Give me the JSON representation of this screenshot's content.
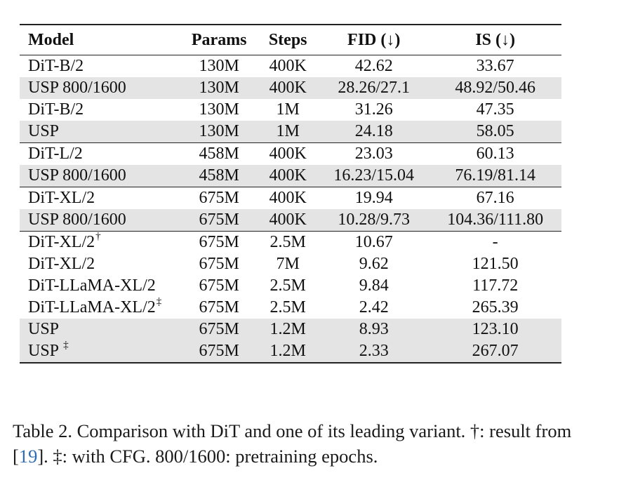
{
  "table": {
    "headers": {
      "model": "Model",
      "params": "Params",
      "steps": "Steps",
      "fid": "FID (↓)",
      "is": "IS (↓)"
    },
    "groups": [
      {
        "rows": [
          {
            "model": "DiT-B/2",
            "mark": "",
            "params": "130M",
            "steps": "400K",
            "fid": "42.62",
            "is": "33.67",
            "shaded": false
          },
          {
            "model": "USP 800/1600",
            "mark": "",
            "params": "130M",
            "steps": "400K",
            "fid": "28.26/27.1",
            "is": "48.92/50.46",
            "shaded": true
          },
          {
            "model": "DiT-B/2",
            "mark": "",
            "params": "130M",
            "steps": "1M",
            "fid": "31.26",
            "is": "47.35",
            "shaded": false
          },
          {
            "model": "USP",
            "mark": "",
            "params": "130M",
            "steps": "1M",
            "fid": "24.18",
            "is": "58.05",
            "shaded": true
          }
        ]
      },
      {
        "rows": [
          {
            "model": "DiT-L/2",
            "mark": "",
            "params": "458M",
            "steps": "400K",
            "fid": "23.03",
            "is": "60.13",
            "shaded": false
          },
          {
            "model": "USP 800/1600",
            "mark": "",
            "params": "458M",
            "steps": "400K",
            "fid": "16.23/15.04",
            "is": "76.19/81.14",
            "shaded": true
          }
        ]
      },
      {
        "rows": [
          {
            "model": "DiT-XL/2",
            "mark": "",
            "params": "675M",
            "steps": "400K",
            "fid": "19.94",
            "is": "67.16",
            "shaded": false
          },
          {
            "model": "USP 800/1600",
            "mark": "",
            "params": "675M",
            "steps": "400K",
            "fid": "10.28/9.73",
            "is": "104.36/111.80",
            "shaded": true
          }
        ]
      },
      {
        "rows": [
          {
            "model": "DiT-XL/2",
            "mark": "†",
            "params": "675M",
            "steps": "2.5M",
            "fid": "10.67",
            "is": "-",
            "shaded": false
          },
          {
            "model": "DiT-XL/2",
            "mark": "",
            "params": "675M",
            "steps": "7M",
            "fid": "9.62",
            "is": "121.50",
            "shaded": false
          },
          {
            "model": "DiT-LLaMA-XL/2",
            "mark": "",
            "params": "675M",
            "steps": "2.5M",
            "fid": "9.84",
            "is": "117.72",
            "shaded": false
          },
          {
            "model": "DiT-LLaMA-XL/2",
            "mark": "‡",
            "params": "675M",
            "steps": "2.5M",
            "fid": "2.42",
            "is": "265.39",
            "shaded": false
          },
          {
            "model": "USP",
            "mark": "",
            "params": "675M",
            "steps": "1.2M",
            "fid": "8.93",
            "is": "123.10",
            "shaded": true
          },
          {
            "model": "USP ",
            "mark": "‡",
            "params": "675M",
            "steps": "1.2M",
            "fid": "2.33",
            "is": "267.07",
            "shaded": true
          }
        ]
      }
    ]
  },
  "caption": {
    "part1": "Table 2.  Comparison with DiT and one of its leading variant.  †: result from [",
    "ref": "19",
    "part2": "]. ‡: with CFG. 800/1600: pretraining epochs."
  }
}
